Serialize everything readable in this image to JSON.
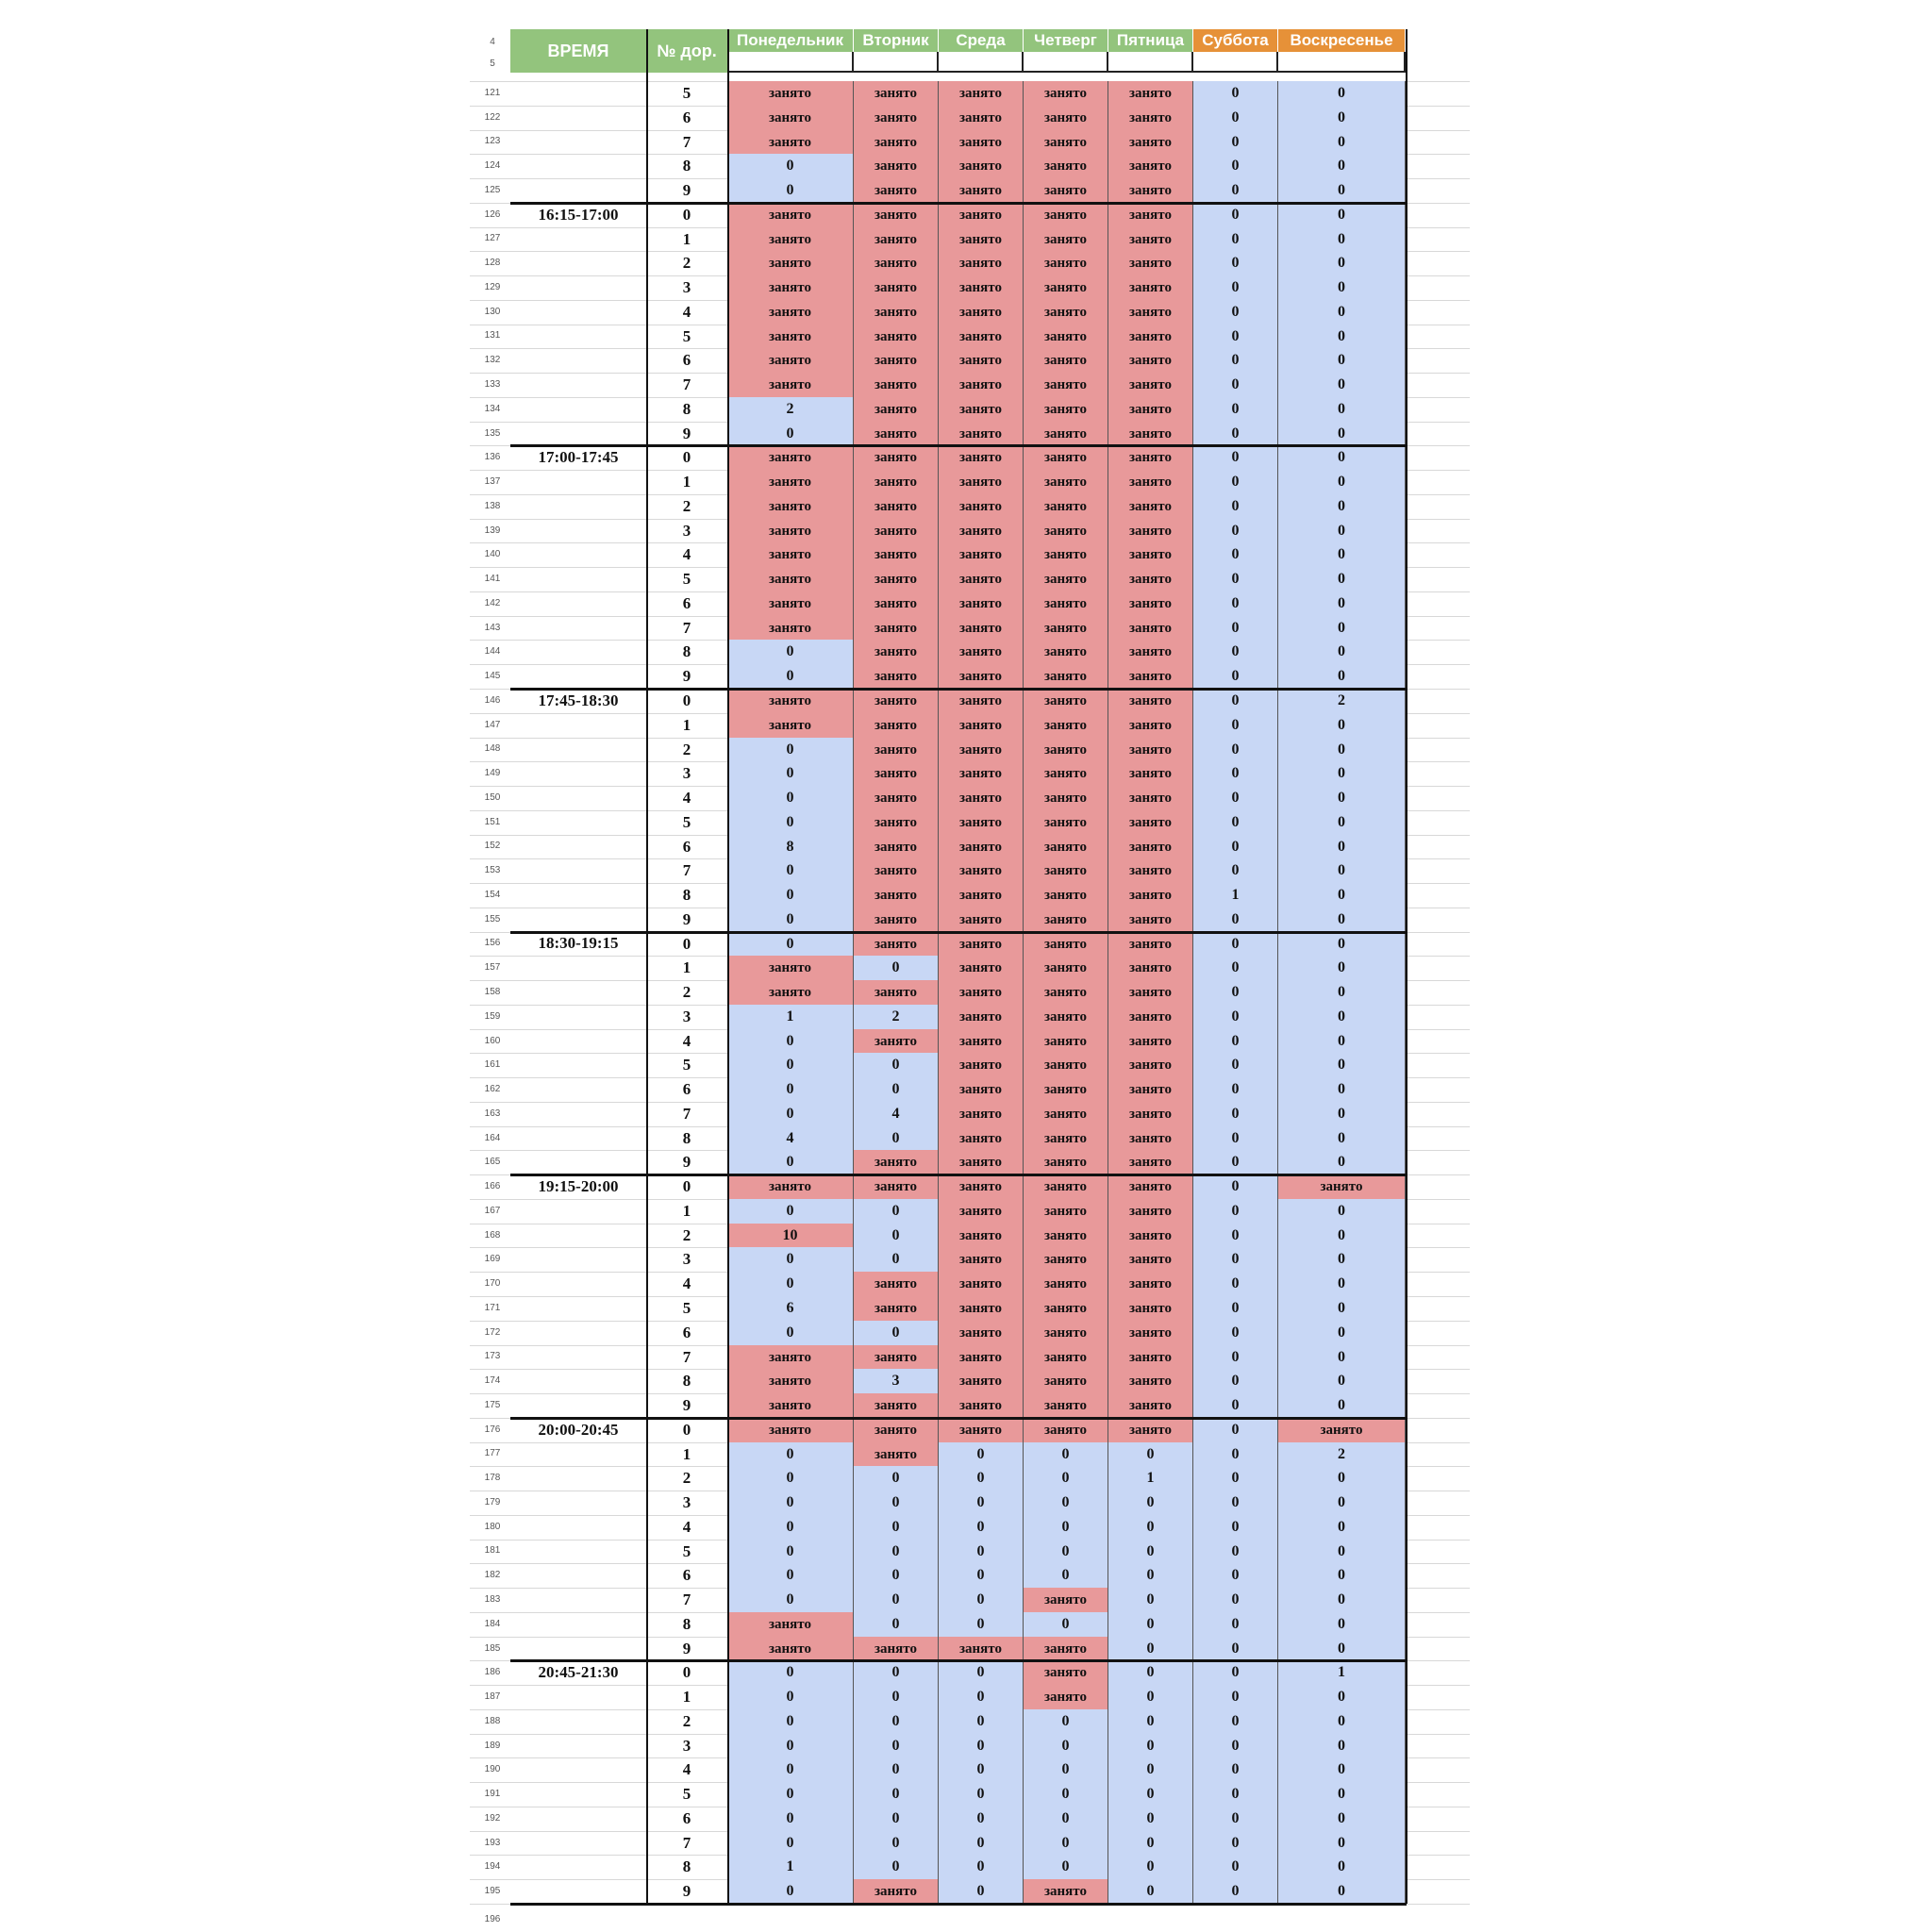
{
  "header": {
    "time_label": "ВРЕМЯ",
    "lane_label": "№ дор.",
    "days": [
      "Понедельник",
      "Вторник",
      "Среда",
      "Четверг",
      "Пятница",
      "Суббота",
      "Воскресенье"
    ],
    "top_row_numbers": [
      "4",
      "5"
    ]
  },
  "busy_label": "занято",
  "colors": {
    "header_green": "#93c47d",
    "header_orange": "#e69138",
    "busy": "#e8999a",
    "free": "#c8d7f5"
  },
  "rows": [
    {
      "r": "121",
      "time": "",
      "lane": "5",
      "v": [
        "B",
        "B",
        "B",
        "B",
        "B",
        "0",
        "0"
      ]
    },
    {
      "r": "122",
      "time": "",
      "lane": "6",
      "v": [
        "B",
        "B",
        "B",
        "B",
        "B",
        "0",
        "0"
      ]
    },
    {
      "r": "123",
      "time": "",
      "lane": "7",
      "v": [
        "B",
        "B",
        "B",
        "B",
        "B",
        "0",
        "0"
      ]
    },
    {
      "r": "124",
      "time": "",
      "lane": "8",
      "v": [
        "0",
        "B",
        "B",
        "B",
        "B",
        "0",
        "0"
      ]
    },
    {
      "r": "125",
      "time": "",
      "lane": "9",
      "v": [
        "0",
        "B",
        "B",
        "B",
        "B",
        "0",
        "0"
      ]
    },
    {
      "r": "126",
      "time": "16:15-17:00",
      "lane": "0",
      "v": [
        "B",
        "B",
        "B",
        "B",
        "B",
        "0",
        "0"
      ]
    },
    {
      "r": "127",
      "time": "",
      "lane": "1",
      "v": [
        "B",
        "B",
        "B",
        "B",
        "B",
        "0",
        "0"
      ]
    },
    {
      "r": "128",
      "time": "",
      "lane": "2",
      "v": [
        "B",
        "B",
        "B",
        "B",
        "B",
        "0",
        "0"
      ]
    },
    {
      "r": "129",
      "time": "",
      "lane": "3",
      "v": [
        "B",
        "B",
        "B",
        "B",
        "B",
        "0",
        "0"
      ]
    },
    {
      "r": "130",
      "time": "",
      "lane": "4",
      "v": [
        "B",
        "B",
        "B",
        "B",
        "B",
        "0",
        "0"
      ]
    },
    {
      "r": "131",
      "time": "",
      "lane": "5",
      "v": [
        "B",
        "B",
        "B",
        "B",
        "B",
        "0",
        "0"
      ]
    },
    {
      "r": "132",
      "time": "",
      "lane": "6",
      "v": [
        "B",
        "B",
        "B",
        "B",
        "B",
        "0",
        "0"
      ]
    },
    {
      "r": "133",
      "time": "",
      "lane": "7",
      "v": [
        "B",
        "B",
        "B",
        "B",
        "B",
        "0",
        "0"
      ]
    },
    {
      "r": "134",
      "time": "",
      "lane": "8",
      "v": [
        "2",
        "B",
        "B",
        "B",
        "B",
        "0",
        "0"
      ]
    },
    {
      "r": "135",
      "time": "",
      "lane": "9",
      "v": [
        "0",
        "B",
        "B",
        "B",
        "B",
        "0",
        "0"
      ]
    },
    {
      "r": "136",
      "time": "17:00-17:45",
      "lane": "0",
      "v": [
        "B",
        "B",
        "B",
        "B",
        "B",
        "0",
        "0"
      ]
    },
    {
      "r": "137",
      "time": "",
      "lane": "1",
      "v": [
        "B",
        "B",
        "B",
        "B",
        "B",
        "0",
        "0"
      ]
    },
    {
      "r": "138",
      "time": "",
      "lane": "2",
      "v": [
        "B",
        "B",
        "B",
        "B",
        "B",
        "0",
        "0"
      ]
    },
    {
      "r": "139",
      "time": "",
      "lane": "3",
      "v": [
        "B",
        "B",
        "B",
        "B",
        "B",
        "0",
        "0"
      ]
    },
    {
      "r": "140",
      "time": "",
      "lane": "4",
      "v": [
        "B",
        "B",
        "B",
        "B",
        "B",
        "0",
        "0"
      ]
    },
    {
      "r": "141",
      "time": "",
      "lane": "5",
      "v": [
        "B",
        "B",
        "B",
        "B",
        "B",
        "0",
        "0"
      ]
    },
    {
      "r": "142",
      "time": "",
      "lane": "6",
      "v": [
        "B",
        "B",
        "B",
        "B",
        "B",
        "0",
        "0"
      ]
    },
    {
      "r": "143",
      "time": "",
      "lane": "7",
      "v": [
        "B",
        "B",
        "B",
        "B",
        "B",
        "0",
        "0"
      ]
    },
    {
      "r": "144",
      "time": "",
      "lane": "8",
      "v": [
        "0",
        "B",
        "B",
        "B",
        "B",
        "0",
        "0"
      ]
    },
    {
      "r": "145",
      "time": "",
      "lane": "9",
      "v": [
        "0",
        "B",
        "B",
        "B",
        "B",
        "0",
        "0"
      ]
    },
    {
      "r": "146",
      "time": "17:45-18:30",
      "lane": "0",
      "v": [
        "B",
        "B",
        "B",
        "B",
        "B",
        "0",
        "2"
      ]
    },
    {
      "r": "147",
      "time": "",
      "lane": "1",
      "v": [
        "B",
        "B",
        "B",
        "B",
        "B",
        "0",
        "0"
      ]
    },
    {
      "r": "148",
      "time": "",
      "lane": "2",
      "v": [
        "0",
        "B",
        "B",
        "B",
        "B",
        "0",
        "0"
      ]
    },
    {
      "r": "149",
      "time": "",
      "lane": "3",
      "v": [
        "0",
        "B",
        "B",
        "B",
        "B",
        "0",
        "0"
      ]
    },
    {
      "r": "150",
      "time": "",
      "lane": "4",
      "v": [
        "0",
        "B",
        "B",
        "B",
        "B",
        "0",
        "0"
      ]
    },
    {
      "r": "151",
      "time": "",
      "lane": "5",
      "v": [
        "0",
        "B",
        "B",
        "B",
        "B",
        "0",
        "0"
      ]
    },
    {
      "r": "152",
      "time": "",
      "lane": "6",
      "v": [
        "8",
        "B",
        "B",
        "B",
        "B",
        "0",
        "0"
      ]
    },
    {
      "r": "153",
      "time": "",
      "lane": "7",
      "v": [
        "0",
        "B",
        "B",
        "B",
        "B",
        "0",
        "0"
      ]
    },
    {
      "r": "154",
      "time": "",
      "lane": "8",
      "v": [
        "0",
        "B",
        "B",
        "B",
        "B",
        "1",
        "0"
      ]
    },
    {
      "r": "155",
      "time": "",
      "lane": "9",
      "v": [
        "0",
        "B",
        "B",
        "B",
        "B",
        "0",
        "0"
      ]
    },
    {
      "r": "156",
      "time": "18:30-19:15",
      "lane": "0",
      "v": [
        "0",
        "B",
        "B",
        "B",
        "B",
        "0",
        "0"
      ]
    },
    {
      "r": "157",
      "time": "",
      "lane": "1",
      "v": [
        "B",
        "0",
        "B",
        "B",
        "B",
        "0",
        "0"
      ]
    },
    {
      "r": "158",
      "time": "",
      "lane": "2",
      "v": [
        "B",
        "B",
        "B",
        "B",
        "B",
        "0",
        "0"
      ]
    },
    {
      "r": "159",
      "time": "",
      "lane": "3",
      "v": [
        "1",
        "2",
        "B",
        "B",
        "B",
        "0",
        "0"
      ]
    },
    {
      "r": "160",
      "time": "",
      "lane": "4",
      "v": [
        "0",
        "B",
        "B",
        "B",
        "B",
        "0",
        "0"
      ]
    },
    {
      "r": "161",
      "time": "",
      "lane": "5",
      "v": [
        "0",
        "0",
        "B",
        "B",
        "B",
        "0",
        "0"
      ]
    },
    {
      "r": "162",
      "time": "",
      "lane": "6",
      "v": [
        "0",
        "0",
        "B",
        "B",
        "B",
        "0",
        "0"
      ]
    },
    {
      "r": "163",
      "time": "",
      "lane": "7",
      "v": [
        "0",
        "4",
        "B",
        "B",
        "B",
        "0",
        "0"
      ]
    },
    {
      "r": "164",
      "time": "",
      "lane": "8",
      "v": [
        "4",
        "0",
        "B",
        "B",
        "B",
        "0",
        "0"
      ]
    },
    {
      "r": "165",
      "time": "",
      "lane": "9",
      "v": [
        "0",
        "B",
        "B",
        "B",
        "B",
        "0",
        "0"
      ]
    },
    {
      "r": "166",
      "time": "19:15-20:00",
      "lane": "0",
      "v": [
        "B",
        "B",
        "B",
        "B",
        "B",
        "0",
        "B"
      ]
    },
    {
      "r": "167",
      "time": "",
      "lane": "1",
      "v": [
        "0",
        "0",
        "B",
        "B",
        "B",
        "0",
        "0"
      ]
    },
    {
      "r": "168",
      "time": "",
      "lane": "2",
      "v": [
        "10*",
        "0",
        "B",
        "B",
        "B",
        "0",
        "0"
      ]
    },
    {
      "r": "169",
      "time": "",
      "lane": "3",
      "v": [
        "0",
        "0",
        "B",
        "B",
        "B",
        "0",
        "0"
      ]
    },
    {
      "r": "170",
      "time": "",
      "lane": "4",
      "v": [
        "0",
        "B",
        "B",
        "B",
        "B",
        "0",
        "0"
      ]
    },
    {
      "r": "171",
      "time": "",
      "lane": "5",
      "v": [
        "6",
        "B",
        "B",
        "B",
        "B",
        "0",
        "0"
      ]
    },
    {
      "r": "172",
      "time": "",
      "lane": "6",
      "v": [
        "0",
        "0",
        "B",
        "B",
        "B",
        "0",
        "0"
      ]
    },
    {
      "r": "173",
      "time": "",
      "lane": "7",
      "v": [
        "B",
        "B",
        "B",
        "B",
        "B",
        "0",
        "0"
      ]
    },
    {
      "r": "174",
      "time": "",
      "lane": "8",
      "v": [
        "B",
        "3",
        "B",
        "B",
        "B",
        "0",
        "0"
      ]
    },
    {
      "r": "175",
      "time": "",
      "lane": "9",
      "v": [
        "B",
        "B",
        "B",
        "B",
        "B",
        "0",
        "0"
      ]
    },
    {
      "r": "176",
      "time": "20:00-20:45",
      "lane": "0",
      "v": [
        "B",
        "B",
        "B",
        "B",
        "B",
        "0",
        "B"
      ]
    },
    {
      "r": "177",
      "time": "",
      "lane": "1",
      "v": [
        "0",
        "B",
        "0",
        "0",
        "0",
        "0",
        "2"
      ]
    },
    {
      "r": "178",
      "time": "",
      "lane": "2",
      "v": [
        "0",
        "0",
        "0",
        "0",
        "1",
        "0",
        "0"
      ]
    },
    {
      "r": "179",
      "time": "",
      "lane": "3",
      "v": [
        "0",
        "0",
        "0",
        "0",
        "0",
        "0",
        "0"
      ]
    },
    {
      "r": "180",
      "time": "",
      "lane": "4",
      "v": [
        "0",
        "0",
        "0",
        "0",
        "0",
        "0",
        "0"
      ]
    },
    {
      "r": "181",
      "time": "",
      "lane": "5",
      "v": [
        "0",
        "0",
        "0",
        "0",
        "0",
        "0",
        "0"
      ]
    },
    {
      "r": "182",
      "time": "",
      "lane": "6",
      "v": [
        "0",
        "0",
        "0",
        "0",
        "0",
        "0",
        "0"
      ]
    },
    {
      "r": "183",
      "time": "",
      "lane": "7",
      "v": [
        "0",
        "0",
        "0",
        "B",
        "0",
        "0",
        "0"
      ]
    },
    {
      "r": "184",
      "time": "",
      "lane": "8",
      "v": [
        "B",
        "0",
        "0",
        "0",
        "0",
        "0",
        "0"
      ]
    },
    {
      "r": "185",
      "time": "",
      "lane": "9",
      "v": [
        "B",
        "B",
        "B",
        "B",
        "0",
        "0",
        "0"
      ]
    },
    {
      "r": "186",
      "time": "20:45-21:30",
      "lane": "0",
      "v": [
        "0",
        "0",
        "0",
        "B",
        "0",
        "0",
        "1"
      ]
    },
    {
      "r": "187",
      "time": "",
      "lane": "1",
      "v": [
        "0",
        "0",
        "0",
        "B",
        "0",
        "0",
        "0"
      ]
    },
    {
      "r": "188",
      "time": "",
      "lane": "2",
      "v": [
        "0",
        "0",
        "0",
        "0",
        "0",
        "0",
        "0"
      ]
    },
    {
      "r": "189",
      "time": "",
      "lane": "3",
      "v": [
        "0",
        "0",
        "0",
        "0",
        "0",
        "0",
        "0"
      ]
    },
    {
      "r": "190",
      "time": "",
      "lane": "4",
      "v": [
        "0",
        "0",
        "0",
        "0",
        "0",
        "0",
        "0"
      ]
    },
    {
      "r": "191",
      "time": "",
      "lane": "5",
      "v": [
        "0",
        "0",
        "0",
        "0",
        "0",
        "0",
        "0"
      ]
    },
    {
      "r": "192",
      "time": "",
      "lane": "6",
      "v": [
        "0",
        "0",
        "0",
        "0",
        "0",
        "0",
        "0"
      ]
    },
    {
      "r": "193",
      "time": "",
      "lane": "7",
      "v": [
        "0",
        "0",
        "0",
        "0",
        "0",
        "0",
        "0"
      ]
    },
    {
      "r": "194",
      "time": "",
      "lane": "8",
      "v": [
        "1",
        "0",
        "0",
        "0",
        "0",
        "0",
        "0"
      ]
    },
    {
      "r": "195",
      "time": "",
      "lane": "9",
      "v": [
        "0",
        "B",
        "0",
        "B",
        "0",
        "0",
        "0"
      ]
    }
  ],
  "footer_row_number": "196"
}
